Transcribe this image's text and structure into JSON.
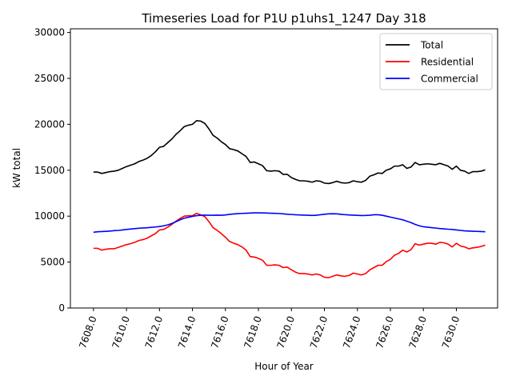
{
  "chart_data": {
    "type": "line",
    "title": "Timeseries Load for P1U p1uhs1_1247  Day 318",
    "xlabel": "Hour of Year",
    "ylabel": "kW total",
    "xlim": [
      7606.6,
      7632.5
    ],
    "ylim": [
      0,
      30400
    ],
    "xticks": [
      7608,
      7610,
      7612,
      7614,
      7616,
      7618,
      7620,
      7622,
      7624,
      7626,
      7628,
      7630
    ],
    "xtick_labels": [
      "7608.0",
      "7610.0",
      "7612.0",
      "7614.0",
      "7616.0",
      "7618.0",
      "7620.0",
      "7622.0",
      "7624.0",
      "7626.0",
      "7628.0",
      "7630.0"
    ],
    "yticks": [
      0,
      5000,
      10000,
      15000,
      20000,
      25000,
      30000
    ],
    "ytick_labels": [
      "0",
      "5000",
      "10000",
      "15000",
      "20000",
      "25000",
      "30000"
    ],
    "grid": false,
    "legend_position": "top-right",
    "x": [
      7608.0,
      7608.25,
      7608.5,
      7608.75,
      7609.0,
      7609.25,
      7609.5,
      7609.75,
      7610.0,
      7610.25,
      7610.5,
      7610.75,
      7611.0,
      7611.25,
      7611.5,
      7611.75,
      7612.0,
      7612.25,
      7612.5,
      7612.75,
      7613.0,
      7613.25,
      7613.5,
      7613.75,
      7614.0,
      7614.25,
      7614.5,
      7614.75,
      7615.0,
      7615.25,
      7615.5,
      7615.75,
      7616.0,
      7616.25,
      7616.5,
      7616.75,
      7617.0,
      7617.25,
      7617.5,
      7617.75,
      7618.0,
      7618.25,
      7618.5,
      7618.75,
      7619.0,
      7619.25,
      7619.5,
      7619.75,
      7620.0,
      7620.25,
      7620.5,
      7620.75,
      7621.0,
      7621.25,
      7621.5,
      7621.75,
      7622.0,
      7622.25,
      7622.5,
      7622.75,
      7623.0,
      7623.25,
      7623.5,
      7623.75,
      7624.0,
      7624.25,
      7624.5,
      7624.75,
      7625.0,
      7625.25,
      7625.5,
      7625.75,
      7626.0,
      7626.25,
      7626.5,
      7626.75,
      7627.0,
      7627.25,
      7627.5,
      7627.75,
      7628.0,
      7628.25,
      7628.5,
      7628.75,
      7629.0,
      7629.25,
      7629.5,
      7629.75,
      7630.0,
      7630.25,
      7630.5,
      7630.75,
      7631.0,
      7631.25,
      7631.5,
      7631.75
    ],
    "series": [
      {
        "name": "Total",
        "color": "#000000",
        "values": [
          14800,
          14800,
          14650,
          14750,
          14850,
          14900,
          15000,
          15200,
          15400,
          15550,
          15700,
          15950,
          16100,
          16300,
          16600,
          17000,
          17500,
          17600,
          18000,
          18400,
          18900,
          19300,
          19750,
          19900,
          20000,
          20400,
          20350,
          20100,
          19500,
          18800,
          18500,
          18100,
          17800,
          17350,
          17250,
          17100,
          16800,
          16500,
          15850,
          15900,
          15700,
          15500,
          14950,
          14900,
          14950,
          14900,
          14550,
          14550,
          14200,
          14000,
          13850,
          13850,
          13800,
          13700,
          13850,
          13800,
          13600,
          13550,
          13650,
          13800,
          13650,
          13600,
          13650,
          13850,
          13750,
          13700,
          13900,
          14350,
          14500,
          14700,
          14650,
          15000,
          15150,
          15450,
          15450,
          15600,
          15200,
          15350,
          15850,
          15600,
          15650,
          15700,
          15650,
          15600,
          15750,
          15600,
          15450,
          15100,
          15450,
          15000,
          14900,
          14650,
          14850,
          14850,
          14900,
          15050
        ]
      },
      {
        "name": "Residential",
        "color": "#ff0000",
        "values": [
          6500,
          6500,
          6300,
          6400,
          6450,
          6450,
          6600,
          6750,
          6900,
          7000,
          7150,
          7350,
          7450,
          7600,
          7850,
          8100,
          8500,
          8550,
          8800,
          9100,
          9450,
          9750,
          10000,
          10050,
          10050,
          10300,
          10150,
          9950,
          9400,
          8750,
          8450,
          8100,
          7700,
          7250,
          7050,
          6900,
          6650,
          6300,
          5600,
          5550,
          5400,
          5200,
          4650,
          4650,
          4700,
          4650,
          4400,
          4450,
          4150,
          3900,
          3750,
          3750,
          3700,
          3600,
          3700,
          3600,
          3350,
          3300,
          3450,
          3600,
          3500,
          3450,
          3550,
          3800,
          3700,
          3600,
          3750,
          4150,
          4400,
          4650,
          4650,
          5050,
          5300,
          5750,
          5950,
          6300,
          6100,
          6350,
          7000,
          6850,
          6950,
          7050,
          7050,
          6950,
          7150,
          7100,
          6950,
          6650,
          7050,
          6750,
          6650,
          6450,
          6550,
          6600,
          6700,
          6850
        ]
      },
      {
        "name": "Commercial",
        "color": "#0000ff",
        "values": [
          8250,
          8300,
          8320,
          8350,
          8380,
          8420,
          8450,
          8500,
          8550,
          8600,
          8640,
          8680,
          8720,
          8740,
          8780,
          8820,
          8870,
          8950,
          9050,
          9200,
          9400,
          9600,
          9780,
          9880,
          9980,
          10050,
          10100,
          10110,
          10100,
          10100,
          10110,
          10100,
          10130,
          10200,
          10240,
          10270,
          10300,
          10320,
          10340,
          10360,
          10360,
          10350,
          10340,
          10320,
          10310,
          10290,
          10250,
          10210,
          10180,
          10150,
          10130,
          10110,
          10100,
          10080,
          10100,
          10150,
          10210,
          10250,
          10260,
          10250,
          10200,
          10160,
          10130,
          10110,
          10090,
          10070,
          10080,
          10100,
          10150,
          10150,
          10100,
          10000,
          9900,
          9800,
          9700,
          9600,
          9450,
          9300,
          9100,
          8950,
          8850,
          8800,
          8750,
          8700,
          8650,
          8620,
          8580,
          8550,
          8500,
          8450,
          8400,
          8380,
          8360,
          8340,
          8320,
          8300
        ]
      }
    ]
  }
}
